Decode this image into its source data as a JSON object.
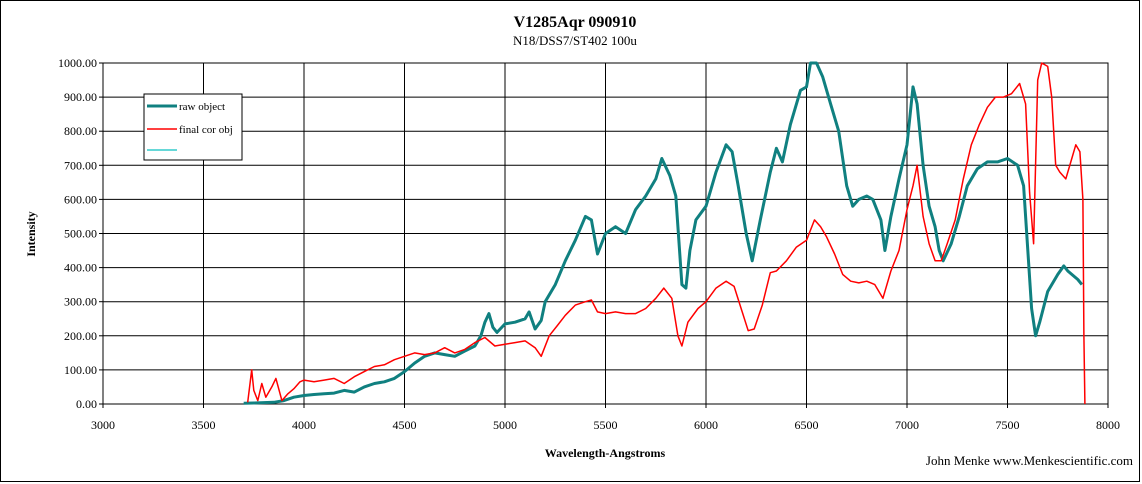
{
  "chart_data": {
    "type": "line",
    "title": "V1285Aqr  090910",
    "subtitle": "N18/DSS7/ST402  100u",
    "xlabel": "Wavelength-Angstroms",
    "ylabel": "Intensity",
    "xlim": [
      3000,
      8000
    ],
    "ylim": [
      0,
      1000
    ],
    "x_ticks": [
      "3000",
      "3500",
      "4000",
      "4500",
      "5000",
      "5500",
      "6000",
      "6500",
      "7000",
      "7500",
      "8000"
    ],
    "y_ticks": [
      "0.00",
      "100.00",
      "200.00",
      "300.00",
      "400.00",
      "500.00",
      "600.00",
      "700.00",
      "800.00",
      "900.00",
      "1000.00"
    ],
    "grid": true,
    "legend_position": "top-left",
    "credit": "John Menke www.Menkescientific.com",
    "series": [
      {
        "name": "raw object",
        "color": "#108080",
        "points": [
          [
            3700,
            2
          ],
          [
            3750,
            3
          ],
          [
            3800,
            4
          ],
          [
            3850,
            5
          ],
          [
            3900,
            10
          ],
          [
            3950,
            20
          ],
          [
            4000,
            25
          ],
          [
            4050,
            28
          ],
          [
            4100,
            30
          ],
          [
            4150,
            32
          ],
          [
            4200,
            40
          ],
          [
            4250,
            35
          ],
          [
            4300,
            50
          ],
          [
            4350,
            60
          ],
          [
            4400,
            65
          ],
          [
            4450,
            75
          ],
          [
            4500,
            95
          ],
          [
            4550,
            120
          ],
          [
            4600,
            140
          ],
          [
            4650,
            150
          ],
          [
            4700,
            145
          ],
          [
            4750,
            140
          ],
          [
            4800,
            155
          ],
          [
            4850,
            170
          ],
          [
            4880,
            200
          ],
          [
            4900,
            240
          ],
          [
            4920,
            265
          ],
          [
            4940,
            225
          ],
          [
            4960,
            210
          ],
          [
            5000,
            235
          ],
          [
            5050,
            240
          ],
          [
            5100,
            250
          ],
          [
            5120,
            270
          ],
          [
            5150,
            220
          ],
          [
            5180,
            245
          ],
          [
            5200,
            300
          ],
          [
            5250,
            350
          ],
          [
            5300,
            420
          ],
          [
            5350,
            480
          ],
          [
            5400,
            550
          ],
          [
            5430,
            540
          ],
          [
            5460,
            440
          ],
          [
            5500,
            500
          ],
          [
            5550,
            520
          ],
          [
            5600,
            500
          ],
          [
            5650,
            570
          ],
          [
            5700,
            610
          ],
          [
            5750,
            660
          ],
          [
            5780,
            720
          ],
          [
            5820,
            670
          ],
          [
            5850,
            610
          ],
          [
            5880,
            350
          ],
          [
            5900,
            340
          ],
          [
            5920,
            450
          ],
          [
            5950,
            540
          ],
          [
            6000,
            580
          ],
          [
            6050,
            680
          ],
          [
            6100,
            760
          ],
          [
            6130,
            740
          ],
          [
            6160,
            640
          ],
          [
            6200,
            500
          ],
          [
            6230,
            420
          ],
          [
            6270,
            540
          ],
          [
            6320,
            680
          ],
          [
            6350,
            750
          ],
          [
            6380,
            710
          ],
          [
            6420,
            820
          ],
          [
            6470,
            920
          ],
          [
            6500,
            930
          ],
          [
            6520,
            1000
          ],
          [
            6550,
            1000
          ],
          [
            6580,
            960
          ],
          [
            6620,
            880
          ],
          [
            6660,
            800
          ],
          [
            6700,
            640
          ],
          [
            6730,
            580
          ],
          [
            6760,
            600
          ],
          [
            6800,
            610
          ],
          [
            6830,
            600
          ],
          [
            6870,
            540
          ],
          [
            6890,
            450
          ],
          [
            6920,
            550
          ],
          [
            6960,
            660
          ],
          [
            7000,
            760
          ],
          [
            7030,
            930
          ],
          [
            7050,
            880
          ],
          [
            7080,
            700
          ],
          [
            7110,
            580
          ],
          [
            7140,
            520
          ],
          [
            7160,
            450
          ],
          [
            7180,
            420
          ],
          [
            7220,
            470
          ],
          [
            7260,
            550
          ],
          [
            7300,
            640
          ],
          [
            7350,
            690
          ],
          [
            7400,
            710
          ],
          [
            7450,
            710
          ],
          [
            7500,
            720
          ],
          [
            7550,
            700
          ],
          [
            7580,
            640
          ],
          [
            7600,
            460
          ],
          [
            7620,
            280
          ],
          [
            7640,
            200
          ],
          [
            7660,
            240
          ],
          [
            7700,
            330
          ],
          [
            7750,
            380
          ],
          [
            7780,
            405
          ],
          [
            7800,
            390
          ],
          [
            7850,
            365
          ],
          [
            7870,
            350
          ]
        ]
      },
      {
        "name": "final cor obj",
        "color": "#ff0000",
        "points": [
          [
            3720,
            5
          ],
          [
            3740,
            100
          ],
          [
            3750,
            40
          ],
          [
            3770,
            10
          ],
          [
            3790,
            60
          ],
          [
            3810,
            20
          ],
          [
            3840,
            50
          ],
          [
            3860,
            75
          ],
          [
            3890,
            10
          ],
          [
            3920,
            30
          ],
          [
            3950,
            45
          ],
          [
            3980,
            65
          ],
          [
            4000,
            70
          ],
          [
            4050,
            65
          ],
          [
            4100,
            70
          ],
          [
            4150,
            75
          ],
          [
            4200,
            60
          ],
          [
            4250,
            80
          ],
          [
            4300,
            95
          ],
          [
            4350,
            110
          ],
          [
            4400,
            115
          ],
          [
            4450,
            130
          ],
          [
            4500,
            140
          ],
          [
            4550,
            150
          ],
          [
            4600,
            145
          ],
          [
            4650,
            150
          ],
          [
            4700,
            165
          ],
          [
            4750,
            150
          ],
          [
            4800,
            160
          ],
          [
            4850,
            180
          ],
          [
            4900,
            195
          ],
          [
            4950,
            170
          ],
          [
            5000,
            175
          ],
          [
            5050,
            180
          ],
          [
            5100,
            185
          ],
          [
            5150,
            165
          ],
          [
            5180,
            140
          ],
          [
            5220,
            200
          ],
          [
            5260,
            230
          ],
          [
            5300,
            260
          ],
          [
            5350,
            290
          ],
          [
            5400,
            300
          ],
          [
            5430,
            305
          ],
          [
            5460,
            270
          ],
          [
            5500,
            265
          ],
          [
            5550,
            270
          ],
          [
            5600,
            265
          ],
          [
            5650,
            265
          ],
          [
            5700,
            280
          ],
          [
            5750,
            310
          ],
          [
            5790,
            340
          ],
          [
            5830,
            310
          ],
          [
            5860,
            200
          ],
          [
            5880,
            170
          ],
          [
            5910,
            240
          ],
          [
            5960,
            280
          ],
          [
            6000,
            300
          ],
          [
            6050,
            340
          ],
          [
            6100,
            360
          ],
          [
            6140,
            345
          ],
          [
            6180,
            270
          ],
          [
            6210,
            215
          ],
          [
            6240,
            220
          ],
          [
            6280,
            290
          ],
          [
            6320,
            385
          ],
          [
            6350,
            390
          ],
          [
            6400,
            420
          ],
          [
            6450,
            460
          ],
          [
            6500,
            480
          ],
          [
            6540,
            540
          ],
          [
            6570,
            520
          ],
          [
            6600,
            490
          ],
          [
            6640,
            440
          ],
          [
            6680,
            380
          ],
          [
            6720,
            360
          ],
          [
            6760,
            355
          ],
          [
            6800,
            360
          ],
          [
            6840,
            350
          ],
          [
            6880,
            310
          ],
          [
            6920,
            390
          ],
          [
            6960,
            450
          ],
          [
            7000,
            570
          ],
          [
            7030,
            640
          ],
          [
            7050,
            700
          ],
          [
            7080,
            550
          ],
          [
            7110,
            470
          ],
          [
            7140,
            420
          ],
          [
            7170,
            420
          ],
          [
            7200,
            470
          ],
          [
            7240,
            540
          ],
          [
            7280,
            660
          ],
          [
            7320,
            760
          ],
          [
            7360,
            820
          ],
          [
            7400,
            870
          ],
          [
            7440,
            900
          ],
          [
            7480,
            900
          ],
          [
            7520,
            910
          ],
          [
            7560,
            940
          ],
          [
            7590,
            880
          ],
          [
            7610,
            620
          ],
          [
            7630,
            470
          ],
          [
            7650,
            950
          ],
          [
            7670,
            1000
          ],
          [
            7700,
            990
          ],
          [
            7720,
            900
          ],
          [
            7740,
            700
          ],
          [
            7760,
            680
          ],
          [
            7790,
            660
          ],
          [
            7820,
            720
          ],
          [
            7840,
            760
          ],
          [
            7860,
            740
          ],
          [
            7875,
            600
          ],
          [
            7880,
            200
          ],
          [
            7885,
            0
          ]
        ]
      },
      {
        "name": "",
        "color": "#33cccc",
        "points": []
      }
    ]
  }
}
